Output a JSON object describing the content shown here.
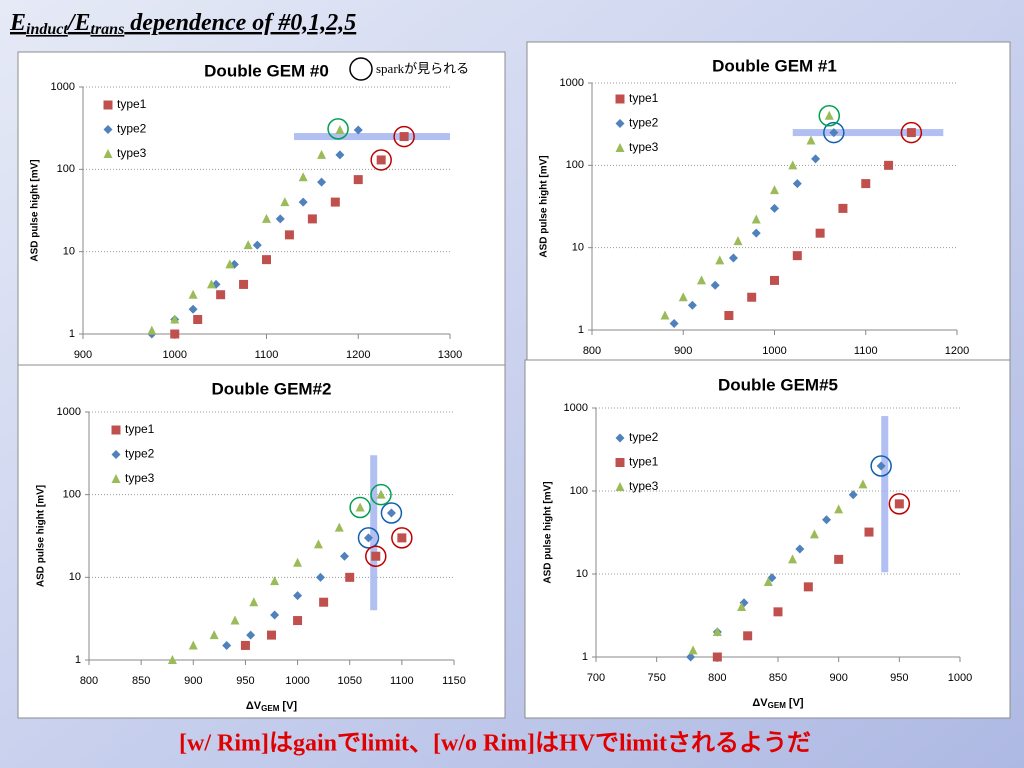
{
  "title_parts": [
    "E",
    "induct",
    "/E",
    "trans",
    " dependence of #0,1,2,5"
  ],
  "spark_note": "sparkが見られる",
  "footer": "[w/ Rim]はgainでlimit、[w/o Rim]はHVでlimitされるようだ",
  "chart_data": [
    {
      "type": "scatter",
      "title": "Double GEM #0",
      "ylabel": "ASD pulse hight [mV]",
      "log_y": true,
      "grid": true,
      "xlim": [
        900,
        1300
      ],
      "xticks": [
        900,
        1000,
        1100,
        1200,
        1300
      ],
      "ylim": [
        1,
        1000
      ],
      "yticks": [
        1,
        10,
        100,
        1000
      ],
      "series": [
        {
          "name": "type1",
          "color": "#c0504d",
          "marker": "square",
          "x": [
            1000,
            1025,
            1050,
            1075,
            1100,
            1125,
            1150,
            1175,
            1200,
            1225,
            1250
          ],
          "values": [
            1,
            1.5,
            3,
            4,
            8,
            16,
            25,
            40,
            75,
            130,
            250
          ]
        },
        {
          "name": "type2",
          "color": "#4f81bd",
          "marker": "diamond",
          "x": [
            975,
            1000,
            1020,
            1045,
            1065,
            1090,
            1115,
            1140,
            1160,
            1180,
            1200
          ],
          "values": [
            1,
            1.5,
            2,
            4,
            7,
            12,
            25,
            40,
            70,
            150,
            300
          ]
        },
        {
          "name": "type3",
          "color": "#9bbb59",
          "marker": "triangle",
          "x": [
            975,
            1000,
            1020,
            1040,
            1060,
            1080,
            1100,
            1120,
            1140,
            1160,
            1180
          ],
          "values": [
            1.1,
            1.5,
            3,
            4,
            7,
            12,
            25,
            40,
            80,
            150,
            300
          ]
        }
      ],
      "band": {
        "orientation": "horizontal",
        "value": 250,
        "from": 1130,
        "to": 1300
      },
      "sparks": [
        {
          "x": 1178,
          "y": 310,
          "color": "#00a050"
        },
        {
          "x": 1250,
          "y": 250,
          "color": "#c00000"
        },
        {
          "x": 1225,
          "y": 130,
          "color": "#c00000"
        }
      ]
    },
    {
      "type": "scatter",
      "title": "Double GEM #1",
      "ylabel": "ASD pulse hight [mV]",
      "log_y": true,
      "grid": true,
      "xlim": [
        800,
        1200
      ],
      "xticks": [
        800,
        900,
        1000,
        1100,
        1200
      ],
      "ylim": [
        1,
        1000
      ],
      "yticks": [
        1,
        10,
        100,
        1000
      ],
      "series": [
        {
          "name": "type1",
          "color": "#c0504d",
          "marker": "square",
          "x": [
            950,
            975,
            1000,
            1025,
            1050,
            1075,
            1100,
            1125,
            1150
          ],
          "values": [
            1.5,
            2.5,
            4,
            8,
            15,
            30,
            60,
            100,
            250
          ]
        },
        {
          "name": "type2",
          "color": "#4f81bd",
          "marker": "diamond",
          "x": [
            890,
            910,
            935,
            955,
            980,
            1000,
            1025,
            1045,
            1065
          ],
          "values": [
            1.2,
            2,
            3.5,
            7.5,
            15,
            30,
            60,
            120,
            250
          ]
        },
        {
          "name": "type3",
          "color": "#9bbb59",
          "marker": "triangle",
          "x": [
            880,
            900,
            920,
            940,
            960,
            980,
            1000,
            1020,
            1040,
            1060
          ],
          "values": [
            1.5,
            2.5,
            4,
            7,
            12,
            22,
            50,
            100,
            200,
            400
          ]
        }
      ],
      "band": {
        "orientation": "horizontal",
        "value": 250,
        "from": 1020,
        "to": 1185
      },
      "sparks": [
        {
          "x": 1065,
          "y": 250,
          "color": "#1060b0"
        },
        {
          "x": 1060,
          "y": 400,
          "color": "#00a050"
        },
        {
          "x": 1150,
          "y": 250,
          "color": "#c00000"
        }
      ]
    },
    {
      "type": "scatter",
      "title": "Double GEM#2",
      "ylabel": "ASD pulse hight [mV]",
      "xlabel_main": "ΔV",
      "xlabel_sub": "GEM",
      "xlabel_unit": " [V]",
      "log_y": true,
      "grid": true,
      "xlim": [
        800,
        1150
      ],
      "xticks": [
        800,
        850,
        900,
        950,
        1000,
        1050,
        1100,
        1150
      ],
      "ylim": [
        1,
        1000
      ],
      "yticks": [
        1,
        10,
        100,
        1000
      ],
      "series": [
        {
          "name": "type1",
          "color": "#c0504d",
          "marker": "square",
          "x": [
            950,
            975,
            1000,
            1025,
            1050,
            1075,
            1100
          ],
          "values": [
            1.5,
            2,
            3,
            5,
            10,
            18,
            30
          ]
        },
        {
          "name": "type2",
          "color": "#4f81bd",
          "marker": "diamond",
          "x": [
            932,
            955,
            978,
            1000,
            1022,
            1045,
            1068,
            1090
          ],
          "values": [
            1.5,
            2,
            3.5,
            6,
            10,
            18,
            30,
            60
          ]
        },
        {
          "name": "type3",
          "color": "#9bbb59",
          "marker": "triangle",
          "x": [
            880,
            900,
            920,
            940,
            958,
            978,
            1000,
            1020,
            1040,
            1060,
            1080
          ],
          "values": [
            1,
            1.5,
            2,
            3,
            5,
            9,
            15,
            25,
            40,
            70,
            100
          ]
        }
      ],
      "band": {
        "orientation": "vertical",
        "value": 1073,
        "from": 4,
        "to": 300
      },
      "sparks": [
        {
          "x": 1068,
          "y": 30,
          "color": "#1060b0"
        },
        {
          "x": 1090,
          "y": 60,
          "color": "#1060b0"
        },
        {
          "x": 1060,
          "y": 70,
          "color": "#00a050"
        },
        {
          "x": 1080,
          "y": 100,
          "color": "#00a050"
        },
        {
          "x": 1075,
          "y": 18,
          "color": "#c00000"
        },
        {
          "x": 1100,
          "y": 30,
          "color": "#c00000"
        }
      ]
    },
    {
      "type": "scatter",
      "title": "Double GEM#5",
      "ylabel": "ASD pulse hight [mV]",
      "xlabel_main": "ΔV",
      "xlabel_sub": "GEM",
      "xlabel_unit": " [V]",
      "log_y": true,
      "grid": true,
      "xlim": [
        700,
        1000
      ],
      "xticks": [
        700,
        750,
        800,
        850,
        900,
        950,
        1000
      ],
      "ylim": [
        1,
        1000
      ],
      "yticks": [
        1,
        10,
        100,
        1000
      ],
      "series": [
        {
          "name": "type2",
          "color": "#4f81bd",
          "marker": "diamond",
          "x": [
            778,
            800,
            822,
            845,
            868,
            890,
            912,
            935
          ],
          "values": [
            1,
            2,
            4.5,
            9,
            20,
            45,
            90,
            200
          ]
        },
        {
          "name": "type1",
          "color": "#c0504d",
          "marker": "square",
          "x": [
            800,
            825,
            850,
            875,
            900,
            925,
            950
          ],
          "values": [
            1,
            1.8,
            3.5,
            7,
            15,
            32,
            70
          ]
        },
        {
          "name": "type3",
          "color": "#9bbb59",
          "marker": "triangle",
          "x": [
            780,
            800,
            820,
            842,
            862,
            880,
            900,
            920
          ],
          "values": [
            1.2,
            2,
            4,
            8,
            15,
            30,
            60,
            120
          ]
        }
      ],
      "band": {
        "orientation": "vertical",
        "value": 938,
        "from": 10.5,
        "to": 800
      },
      "sparks": [
        {
          "x": 935,
          "y": 200,
          "color": "#1060b0"
        },
        {
          "x": 950,
          "y": 70,
          "color": "#c00000"
        }
      ]
    }
  ]
}
